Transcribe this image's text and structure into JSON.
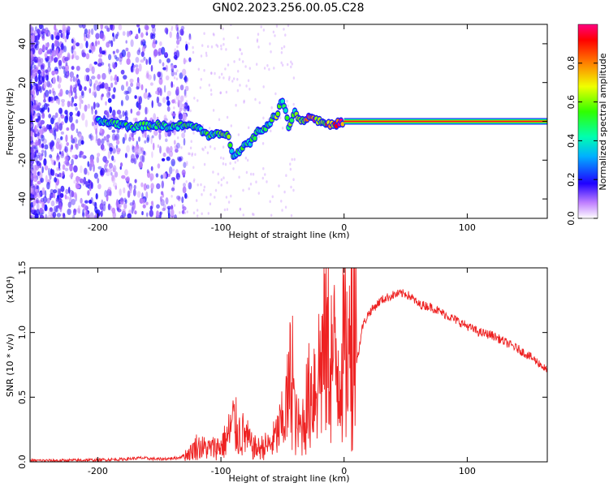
{
  "title": "GN02.2023.256.00.05.C28",
  "chart_data": [
    {
      "type": "heatmap",
      "xlabel": "Height of straight line (km)",
      "ylabel": "Frequency (Hz)",
      "xlim": [
        -255,
        165
      ],
      "ylim": [
        -50,
        50
      ],
      "x_ticks": [
        -200,
        -100,
        0,
        100
      ],
      "x_tick_labels": [
        "-200",
        "-100",
        "0",
        "100"
      ],
      "y_ticks": [
        -40,
        -20,
        0,
        20,
        40
      ],
      "y_tick_labels": [
        "-40",
        "-20",
        "0",
        "20",
        "40"
      ],
      "colorbar": {
        "label": "Normalized spectral amplitude",
        "ticks": [
          0.0,
          0.2,
          0.4,
          0.6,
          0.8
        ],
        "tick_labels": [
          "0.0",
          "0.2",
          "0.4",
          "0.6",
          "0.8"
        ],
        "range": [
          0,
          1
        ]
      },
      "ridge": [
        [
          -200,
          0,
          0.4
        ],
        [
          -185,
          -1,
          0.45
        ],
        [
          -170,
          -3,
          0.45
        ],
        [
          -160,
          -2,
          0.5
        ],
        [
          -150,
          -2,
          0.5
        ],
        [
          -140,
          -3,
          0.5
        ],
        [
          -130,
          -2,
          0.5
        ],
        [
          -120,
          -3,
          0.45
        ],
        [
          -110,
          -7,
          0.5
        ],
        [
          -100,
          -7,
          0.55
        ],
        [
          -95,
          -6,
          0.55
        ],
        [
          -90,
          -17,
          0.45
        ],
        [
          -85,
          -15,
          0.5
        ],
        [
          -80,
          -12,
          0.5
        ],
        [
          -75,
          -10,
          0.5
        ],
        [
          -70,
          -5,
          0.45
        ],
        [
          -65,
          -4,
          0.5
        ],
        [
          -60,
          0,
          0.5
        ],
        [
          -55,
          3,
          0.55
        ],
        [
          -50,
          11,
          0.5
        ],
        [
          -45,
          -2,
          0.6
        ],
        [
          -40,
          5,
          0.55
        ],
        [
          -35,
          0,
          0.6
        ],
        [
          -30,
          2,
          0.9
        ],
        [
          -25,
          2,
          0.85
        ],
        [
          -20,
          0,
          0.8
        ],
        [
          -15,
          -1,
          0.75
        ],
        [
          -10,
          -2,
          0.7
        ],
        [
          -5,
          -1,
          0.85
        ],
        [
          0,
          0,
          0.95
        ],
        [
          165,
          0,
          0.95
        ]
      ]
    },
    {
      "type": "line",
      "xlabel": "Height of straight line (km)",
      "ylabel": "SNR (10 * v/v)",
      "y_multiplier": "(x10⁴)",
      "xlim": [
        -255,
        165
      ],
      "ylim": [
        0,
        1.5
      ],
      "x_ticks": [
        -200,
        -100,
        0,
        100
      ],
      "x_tick_labels": [
        "-200",
        "-100",
        "0",
        "100"
      ],
      "y_ticks": [
        0,
        0.5,
        1.0,
        1.5
      ],
      "y_tick_labels": [
        "0.0",
        "0.5",
        "1.0",
        "1.5"
      ],
      "color": "#ee2222",
      "series": [
        {
          "x": [
            -255,
            -230,
            -200,
            -180,
            -165,
            -150,
            -135,
            -125,
            -120,
            -110,
            -100,
            -95,
            -90,
            -85,
            -80,
            -75,
            -70,
            -65,
            -60,
            -55,
            -50,
            -45,
            -42,
            -40,
            -35,
            -30,
            -25,
            -20,
            -15,
            -10,
            -5,
            0,
            5,
            10,
            15,
            20,
            25,
            30,
            35,
            40,
            45,
            50,
            55,
            60,
            70,
            80,
            90,
            100,
            110,
            120,
            130,
            140,
            150,
            160,
            165
          ],
          "y": [
            0.01,
            0.01,
            0.015,
            0.02,
            0.03,
            0.02,
            0.03,
            0.07,
            0.12,
            0.1,
            0.12,
            0.18,
            0.3,
            0.22,
            0.2,
            0.12,
            0.1,
            0.12,
            0.13,
            0.2,
            0.3,
            0.5,
            0.8,
            0.3,
            0.25,
            0.45,
            0.6,
            0.72,
            0.9,
            0.8,
            0.75,
            0.85,
            0.8,
            0.75,
            1.05,
            1.15,
            1.2,
            1.25,
            1.27,
            1.29,
            1.3,
            1.3,
            1.27,
            1.22,
            1.2,
            1.15,
            1.1,
            1.05,
            1.0,
            0.98,
            0.93,
            0.88,
            0.82,
            0.75,
            0.7
          ]
        }
      ]
    }
  ]
}
